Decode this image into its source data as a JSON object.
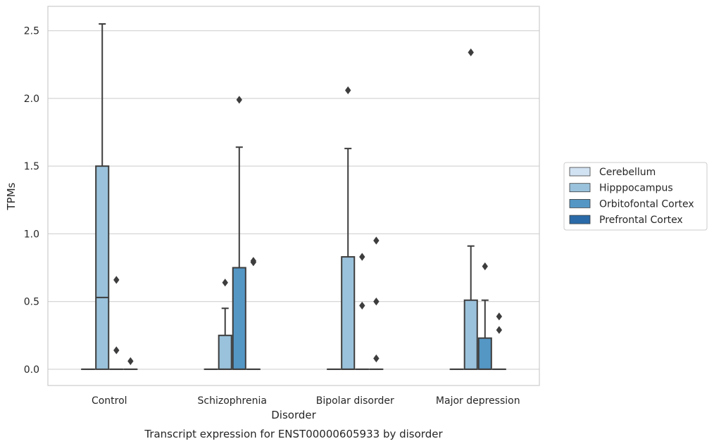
{
  "chart_data": {
    "type": "box",
    "caption": "Transcript expression for ENST00000605933 by disorder",
    "xlabel": "Disorder",
    "ylabel": "TPMs",
    "ylim": [
      -0.12,
      2.68
    ],
    "yticks": [
      "0.0",
      "0.5",
      "1.0",
      "1.5",
      "2.0",
      "2.5"
    ],
    "grid": true,
    "legend_position": "right",
    "categories": [
      "Control",
      "Schizophrenia",
      "Bipolar disorder",
      "Major depression"
    ],
    "series": [
      {
        "name": "Cerebellum",
        "color": "#d1e2f2",
        "boxes": [
          {
            "q1": 0,
            "median": 0,
            "q3": 0,
            "whisker_low": 0,
            "whisker_high": 0,
            "outliers": []
          },
          {
            "q1": 0,
            "median": 0,
            "q3": 0,
            "whisker_low": 0,
            "whisker_high": 0,
            "outliers": []
          },
          {
            "q1": 0,
            "median": 0,
            "q3": 0,
            "whisker_low": 0,
            "whisker_high": 0,
            "outliers": []
          },
          {
            "q1": 0,
            "median": 0,
            "q3": 0,
            "whisker_low": 0,
            "whisker_high": 0,
            "outliers": []
          }
        ]
      },
      {
        "name": "Hipppocampus",
        "color": "#9ac2dc",
        "boxes": [
          {
            "q1": 0,
            "median": 0.53,
            "q3": 1.5,
            "whisker_low": 0,
            "whisker_high": 2.55,
            "outliers": []
          },
          {
            "q1": 0,
            "median": 0,
            "q3": 0.25,
            "whisker_low": 0,
            "whisker_high": 0.45,
            "outliers": [
              0.64
            ]
          },
          {
            "q1": 0,
            "median": 0,
            "q3": 0.83,
            "whisker_low": 0,
            "whisker_high": 1.63,
            "outliers": [
              2.06
            ]
          },
          {
            "q1": 0,
            "median": 0,
            "q3": 0.51,
            "whisker_low": 0,
            "whisker_high": 0.91,
            "outliers": [
              2.34
            ]
          }
        ]
      },
      {
        "name": "Orbitofontal Cortex",
        "color": "#5497c5",
        "boxes": [
          {
            "q1": 0,
            "median": 0,
            "q3": 0,
            "whisker_low": 0,
            "whisker_high": 0,
            "outliers": [
              0.66,
              0.14
            ]
          },
          {
            "q1": 0,
            "median": 0,
            "q3": 0.75,
            "whisker_low": 0,
            "whisker_high": 1.64,
            "outliers": [
              1.99
            ]
          },
          {
            "q1": 0,
            "median": 0,
            "q3": 0,
            "whisker_low": 0,
            "whisker_high": 0,
            "outliers": [
              0.47,
              0.83
            ]
          },
          {
            "q1": 0,
            "median": 0,
            "q3": 0.23,
            "whisker_low": 0,
            "whisker_high": 0.51,
            "outliers": [
              0.76
            ]
          }
        ]
      },
      {
        "name": "Prefrontal Cortex",
        "color": "#2a6aa8",
        "boxes": [
          {
            "q1": 0,
            "median": 0,
            "q3": 0,
            "whisker_low": 0,
            "whisker_high": 0,
            "outliers": [
              0.06
            ]
          },
          {
            "q1": 0,
            "median": 0,
            "q3": 0,
            "whisker_low": 0,
            "whisker_high": 0,
            "outliers": [
              0.79,
              0.8
            ]
          },
          {
            "q1": 0,
            "median": 0,
            "q3": 0,
            "whisker_low": 0,
            "whisker_high": 0,
            "outliers": [
              0.08,
              0.5,
              0.95
            ]
          },
          {
            "q1": 0,
            "median": 0,
            "q3": 0,
            "whisker_low": 0,
            "whisker_high": 0,
            "outliers": [
              0.29,
              0.39
            ]
          }
        ]
      }
    ]
  }
}
